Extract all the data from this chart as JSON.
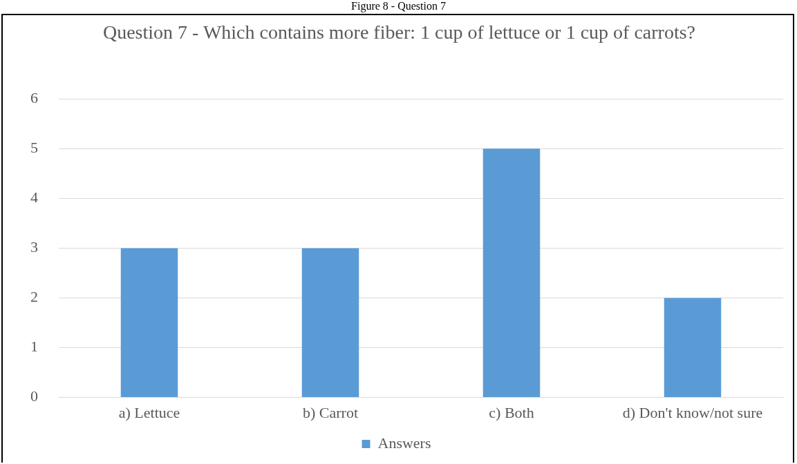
{
  "chart_data": {
    "type": "bar",
    "title": "Question 7 - Which contains more fiber: 1 cup of lettuce or 1 cup of carrots?",
    "annotations": [
      "Figure 8 - Question 7"
    ],
    "categories": [
      "a) Lettuce",
      "b) Carrot",
      "c) Both",
      "d) Don't know/not sure"
    ],
    "series": [
      {
        "name": "Answers",
        "color": "#5b9bd5",
        "values": [
          3,
          3,
          5,
          2
        ]
      }
    ],
    "ylim": [
      0,
      6
    ],
    "yticks": [
      0,
      1,
      2,
      3,
      4,
      5,
      6
    ],
    "grid": "y",
    "legend": "bottom"
  }
}
